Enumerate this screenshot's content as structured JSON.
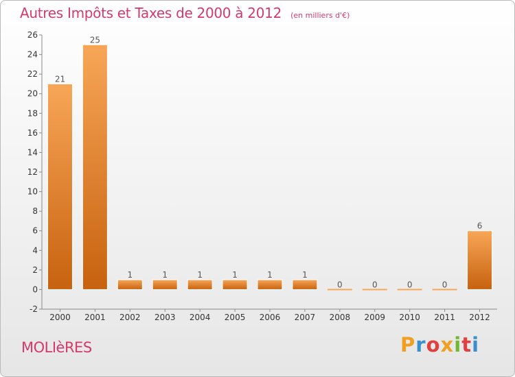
{
  "header": {
    "title": "Autres Impôts et Taxes de 2000 à 2012",
    "subtitle": "(en milliers d'€)"
  },
  "footer": {
    "place_name": "MOLIèRES",
    "brand": "Proxiti"
  },
  "colors": {
    "title": "#d33a6b",
    "bar_top": "#f7a657",
    "bar_bottom": "#c7620f",
    "brand_letters": [
      "#f0a020",
      "#3a8fd0",
      "#e04040",
      "#f0a020",
      "#70b830",
      "#e04040",
      "#3a8fd0"
    ]
  },
  "chart_data": {
    "type": "bar",
    "categories": [
      "2000",
      "2001",
      "2002",
      "2003",
      "2004",
      "2005",
      "2006",
      "2007",
      "2008",
      "2009",
      "2010",
      "2011",
      "2012"
    ],
    "values": [
      21,
      25,
      1,
      1,
      1,
      1,
      1,
      1,
      0,
      0,
      0,
      0,
      6
    ],
    "data_labels": [
      "21",
      "25",
      "1",
      "1",
      "1",
      "1",
      "1",
      "1",
      "0",
      "0",
      "0",
      "0",
      "6"
    ],
    "title": "Autres Impôts et Taxes de 2000 à 2012",
    "subtitle": "(en milliers d'€)",
    "xlabel": "",
    "ylabel": "",
    "ylim": [
      -2,
      26
    ],
    "yticks": [
      -2,
      0,
      2,
      4,
      6,
      8,
      10,
      12,
      14,
      16,
      18,
      20,
      22,
      24,
      26
    ],
    "grid": false,
    "legend": "none"
  }
}
